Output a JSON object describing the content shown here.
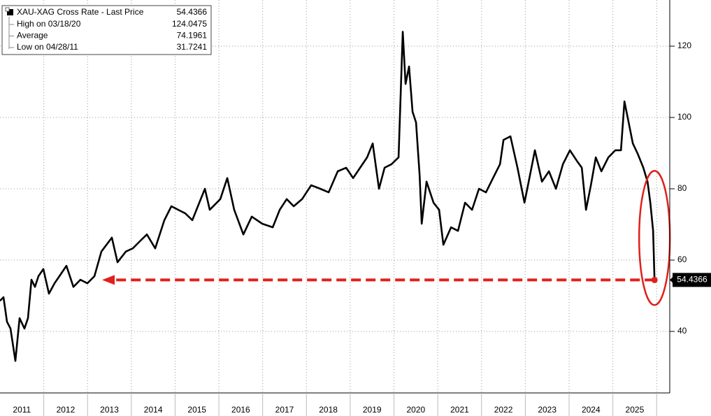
{
  "chart_data": {
    "type": "line",
    "series": [
      {
        "name": "XAU-XAG Cross Rate - Last Price",
        "color": "#000000",
        "x": [
          2011.0,
          2011.08,
          2011.16,
          2011.24,
          2011.351,
          2011.447,
          2011.559,
          2011.639,
          2011.719,
          2011.799,
          2011.879,
          2011.99,
          2012.118,
          2012.246,
          2012.358,
          2012.518,
          2012.677,
          2012.837,
          2012.997,
          2013.157,
          2013.316,
          2013.556,
          2013.684,
          2013.875,
          2014.035,
          2014.195,
          2014.355,
          2014.546,
          2014.754,
          2014.914,
          2015.073,
          2015.233,
          2015.393,
          2015.553,
          2015.681,
          2015.792,
          2016.032,
          2016.192,
          2016.351,
          2016.559,
          2016.751,
          2016.99,
          2017.23,
          2017.39,
          2017.55,
          2017.709,
          2017.901,
          2018.109,
          2018.316,
          2018.508,
          2018.716,
          2018.907,
          2019.067,
          2019.227,
          2019.387,
          2019.514,
          2019.658,
          2019.786,
          2019.946,
          2020.105,
          2020.201,
          2020.265,
          2020.345,
          2020.425,
          2020.505,
          2020.585,
          2020.633,
          2020.744,
          2020.904,
          2021.032,
          2021.128,
          2021.304,
          2021.463,
          2021.623,
          2021.783,
          2021.942,
          2022.102,
          2022.262,
          2022.422,
          2022.502,
          2022.661,
          2022.821,
          2022.981,
          2023.141,
          2023.22,
          2023.38,
          2023.54,
          2023.7,
          2023.859,
          2024.019,
          2024.179,
          2024.291,
          2024.387,
          2024.498,
          2024.61,
          2024.738,
          2024.898,
          2025.058,
          2025.185,
          2025.265,
          2025.345,
          2025.457,
          2025.569,
          2025.696,
          2025.792,
          2025.856,
          2025.92,
          2025.952
        ],
        "values": [
          48.6,
          49.6,
          42.7,
          40.8,
          31.7241,
          43.7,
          40.8,
          43.7,
          54.5,
          52.5,
          55.5,
          57.5,
          50.6,
          53.5,
          55.5,
          58.4,
          52.5,
          54.5,
          53.5,
          55.5,
          62.4,
          66.3,
          59.4,
          62.4,
          63.3,
          65.3,
          67.2,
          63.3,
          71.2,
          75.1,
          74.1,
          73.1,
          71.2,
          76.1,
          80.0,
          74.1,
          77.1,
          83.0,
          74.1,
          67.2,
          72.2,
          70.2,
          69.2,
          74.1,
          77.1,
          75.1,
          77.1,
          81.0,
          80.0,
          79.0,
          84.9,
          85.9,
          83.0,
          85.9,
          88.8,
          92.7,
          80.0,
          85.9,
          86.9,
          88.8,
          124.0475,
          109.4,
          114.3,
          101.6,
          98.6,
          83.9,
          70.2,
          82.0,
          76.1,
          74.1,
          64.3,
          69.2,
          68.2,
          76.1,
          74.1,
          80.0,
          79.0,
          83.0,
          86.9,
          93.7,
          94.7,
          85.9,
          76.1,
          85.9,
          90.8,
          82.0,
          84.9,
          80.0,
          86.9,
          90.8,
          87.8,
          85.9,
          74.1,
          81.0,
          88.8,
          84.9,
          88.8,
          90.8,
          90.8,
          104.5,
          99.6,
          92.7,
          89.8,
          85.9,
          82.0,
          76.1,
          68.2,
          54.4366
        ]
      }
    ],
    "stats": [
      {
        "label": "High on 03/18/20",
        "value": 124.0475
      },
      {
        "label": "Average",
        "value": 74.1961
      },
      {
        "label": "Low on 04/28/11",
        "value": 31.7241
      }
    ],
    "xlim": [
      2011,
      2026.3
    ],
    "xticks": [
      {
        "value": 2011.5,
        "label": "2011"
      },
      {
        "value": 2012.5,
        "label": "2012"
      },
      {
        "value": 2013.5,
        "label": "2013"
      },
      {
        "value": 2014.5,
        "label": "2014"
      },
      {
        "value": 2015.5,
        "label": "2015"
      },
      {
        "value": 2016.5,
        "label": "2016"
      },
      {
        "value": 2017.5,
        "label": "2017"
      },
      {
        "value": 2018.5,
        "label": "2018"
      },
      {
        "value": 2019.5,
        "label": "2019"
      },
      {
        "value": 2020.5,
        "label": "2020"
      },
      {
        "value": 2021.5,
        "label": "2021"
      },
      {
        "value": 2022.5,
        "label": "2022"
      },
      {
        "value": 2023.5,
        "label": "2023"
      },
      {
        "value": 2024.5,
        "label": "2024"
      },
      {
        "value": 2025.5,
        "label": "2025"
      }
    ],
    "xgrid": [
      2012,
      2013,
      2014,
      2015,
      2016,
      2017,
      2018,
      2019,
      2020,
      2021,
      2022,
      2023,
      2024,
      2025,
      2026
    ],
    "ylim": [
      22.75,
      132.94
    ],
    "yticks": [
      40,
      60,
      80,
      100,
      120
    ],
    "grid": true,
    "annotation_color": "#e0201b"
  }
}
